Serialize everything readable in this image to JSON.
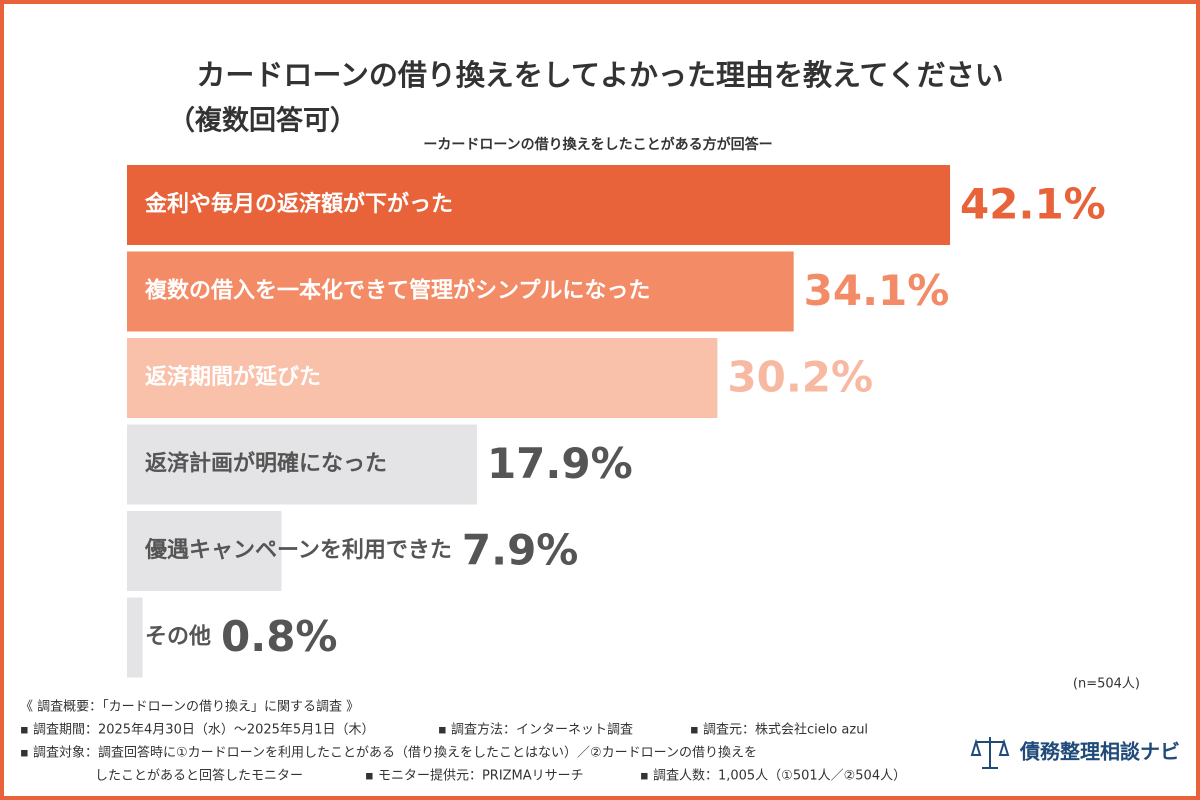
{
  "chart_data": {
    "type": "hbar",
    "title": "カードローンの借り換えをしてよかった理由を教えてください",
    "title_note": "（複数回答可）",
    "subtitle": "ーカードローンの借り換えをしたことがある方が回答ー",
    "categories": [
      "金利や毎月の返済額が下がった",
      "複数の借入を一本化できて管理がシンプルになった",
      "返済期間が延びた",
      "返済計画が明確になった",
      "優遇キャンペーンを利用できた",
      "その他"
    ],
    "values": [
      42.1,
      34.1,
      30.2,
      17.9,
      7.9,
      0.8
    ],
    "value_labels": [
      "42.1%",
      "34.1%",
      "30.2%",
      "17.9%",
      "7.9%",
      "0.8%"
    ],
    "colors": [
      "#e8633a",
      "#f28b66",
      "#f9c0aa",
      "#e4e4e6",
      "#e4e4e6",
      "#e4e4e6"
    ],
    "label_colors": [
      "#ffffff",
      "#ffffff",
      "#ffffff",
      "#555555",
      "#555555",
      "#555555"
    ],
    "value_label_colors": [
      "#e8633a",
      "#f28b66",
      "#f7b9a1",
      "#555555",
      "#555555",
      "#555555"
    ],
    "note": "(n=504人)"
  },
  "footer": {
    "heading": "《 調査概要：「カードローンの借り換え」に関する調査 》",
    "period": "▪ 調査期間：2025年4月30日（水）～2025年5月1日（木）",
    "method": "▪ 調査方法：インターネット調査",
    "source": "▪ 調査元：株式会社cielo azul",
    "target": "▪ 調査対象：調査回答時に①カードローンを利用したことがある（借り換えをしたことはない）／②カードローンの借り換えを",
    "target_cont": "したことがあると回答したモニター",
    "provider": "▪ モニター提供元：PRIZMAリサーチ",
    "count": "▪ 調査人数：1,005人（①501人／②504人）",
    "logo": "債務整理相談ナビ"
  }
}
